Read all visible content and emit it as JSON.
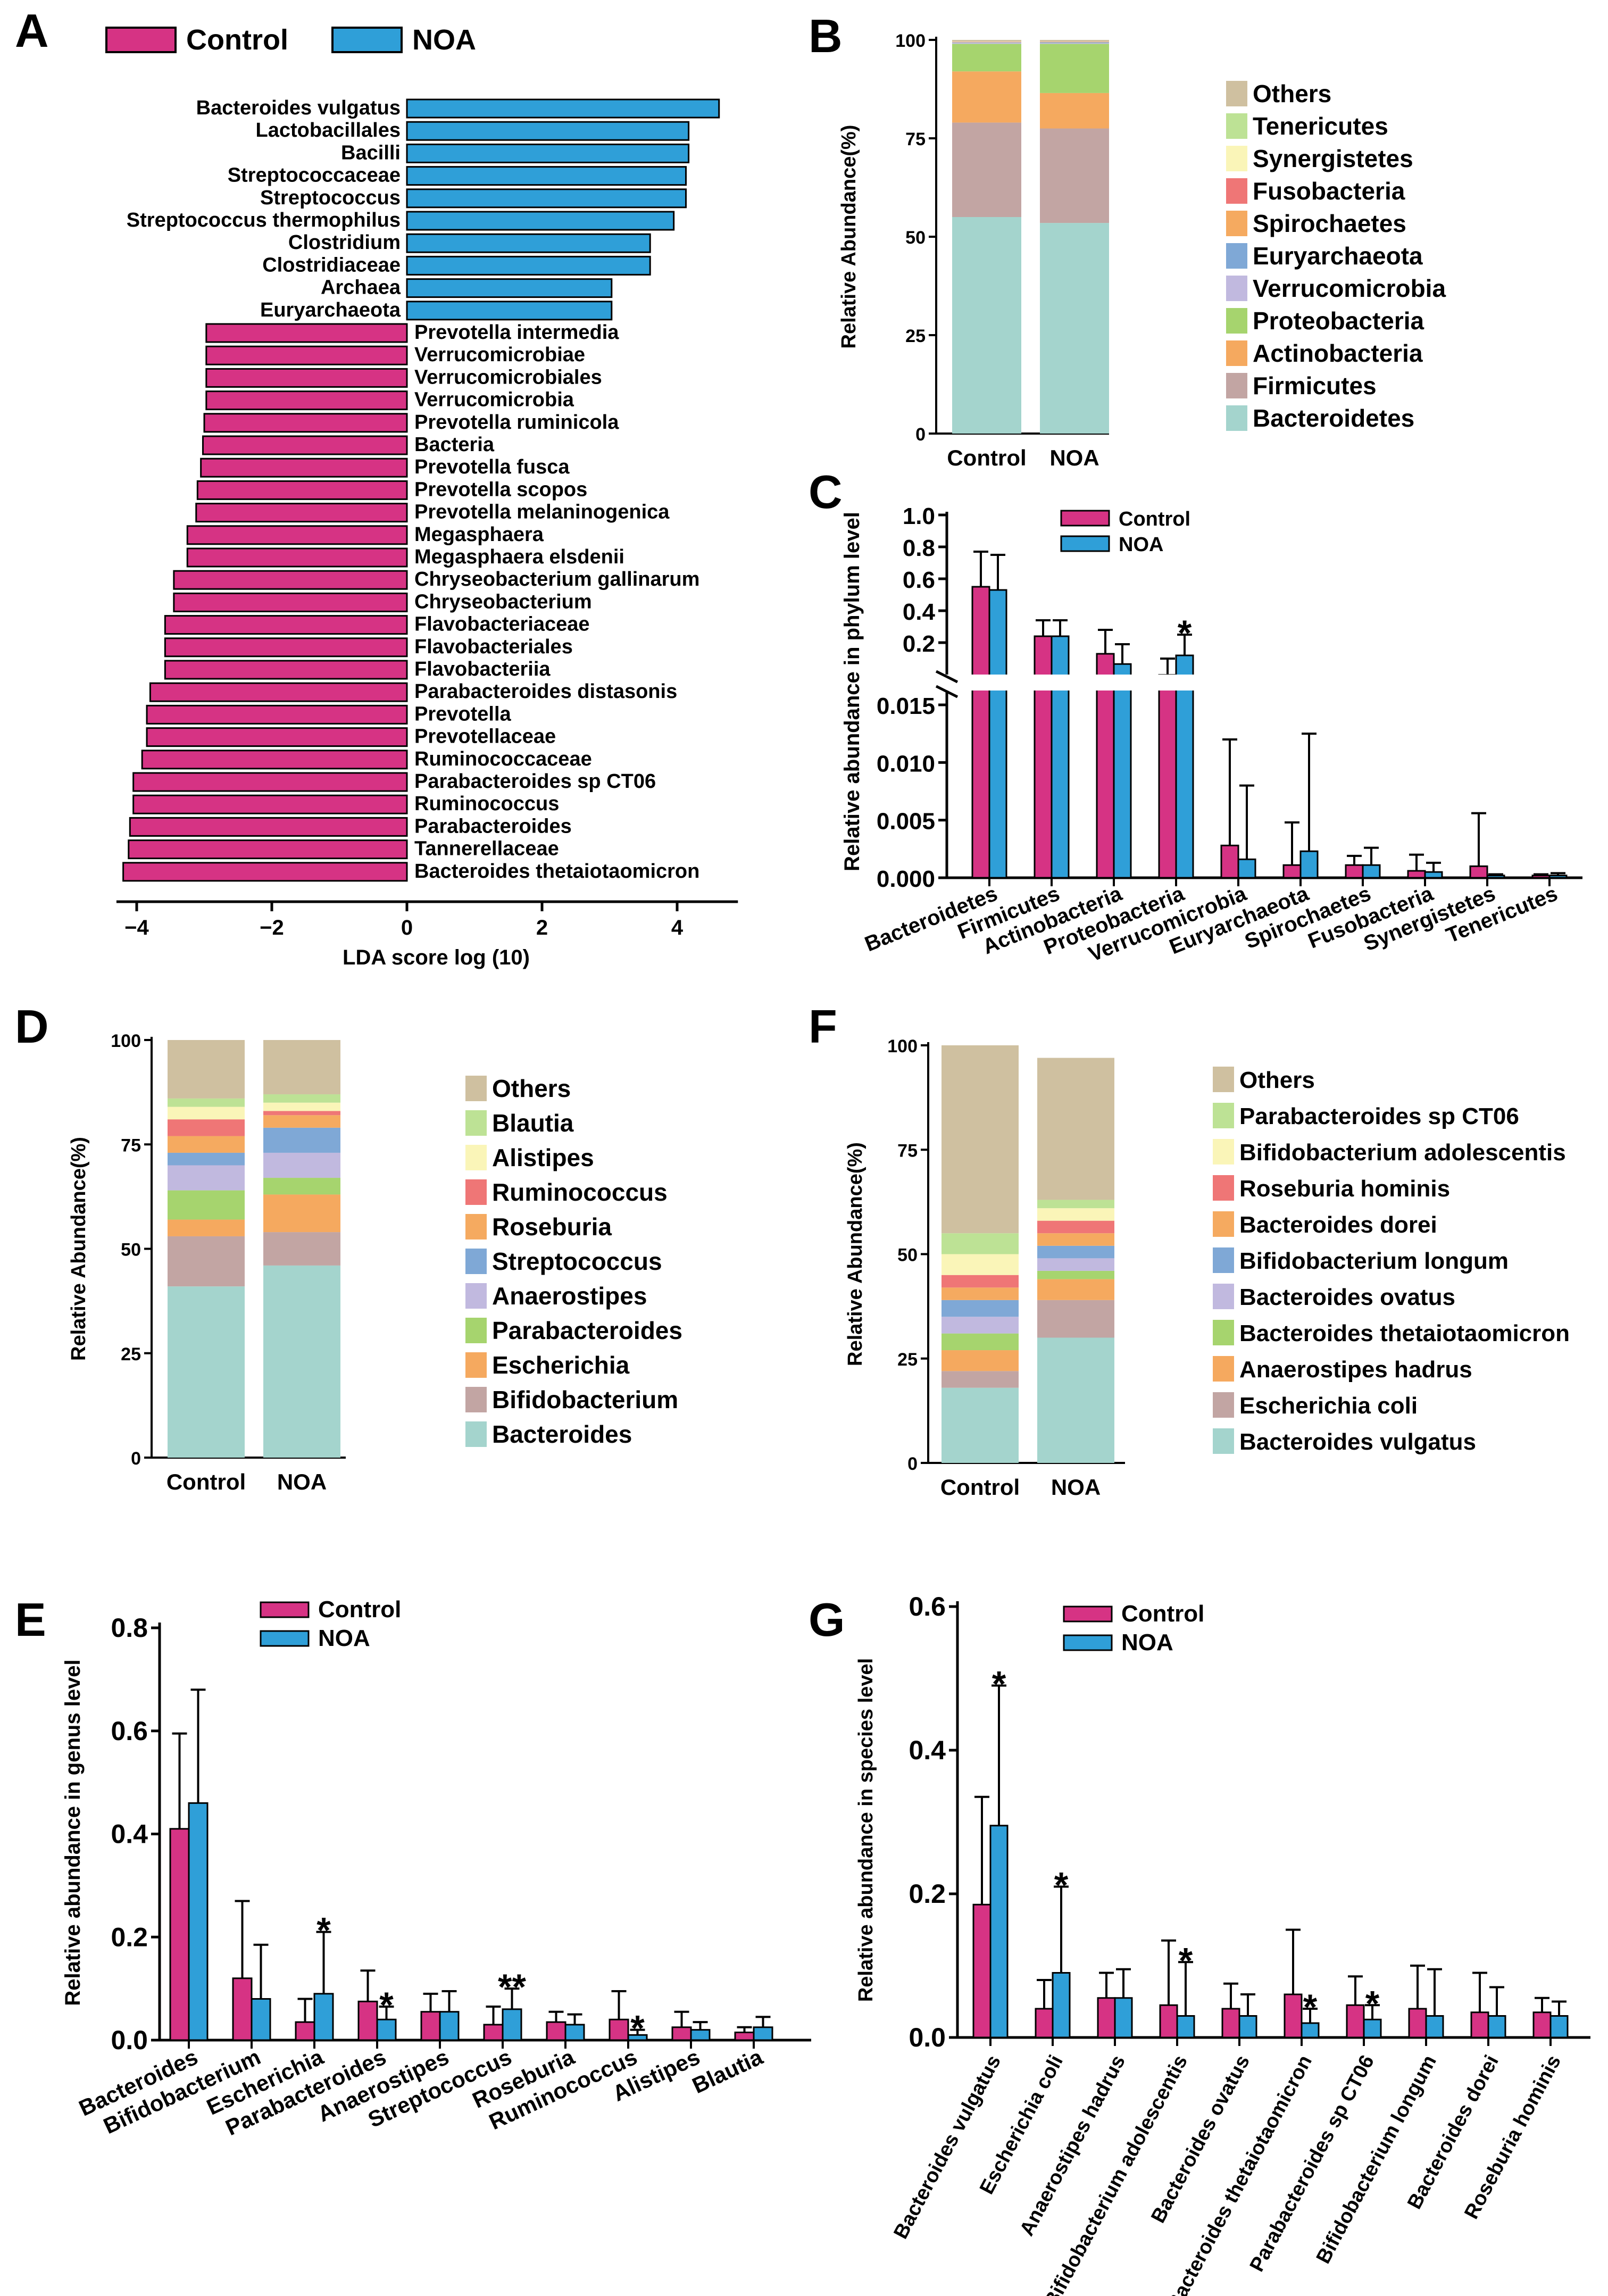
{
  "colors": {
    "control": "#d63384",
    "noa": "#2f9fd8",
    "edge": "#000000",
    "stack": [
      "#a4d4cd",
      "#c2a5a3",
      "#f5a95f",
      "#a6d46e",
      "#c1b9df",
      "#7fa8d6",
      "#f5aa60",
      "#ef7676",
      "#faf5b8",
      "#bde295",
      "#cfc0a0"
    ]
  },
  "legend": {
    "control": "Control",
    "noa": "NOA"
  },
  "panels": {
    "A": "A",
    "B": "B",
    "C": "C",
    "D": "D",
    "E": "E",
    "F": "F",
    "G": "G"
  },
  "chart_data": [
    {
      "id": "A",
      "type": "bar",
      "orientation": "horizontal",
      "title": "",
      "xlabel": "LDA score log (10)",
      "xlim": [
        -4.3,
        4.9
      ],
      "xticks": [
        -4,
        -2,
        0,
        2,
        4
      ],
      "series": [
        {
          "name": "NOA",
          "categories": [
            "Bacteroides vulgatus",
            "Lactobacillales",
            "Bacilli",
            "Streptococcaceae",
            "Streptococcus",
            "Streptococcus thermophilus",
            "Clostridium",
            "Clostridiaceae",
            "Archaea",
            "Euryarchaeota"
          ],
          "values": [
            4.62,
            4.17,
            4.17,
            4.13,
            4.13,
            3.95,
            3.6,
            3.6,
            3.03,
            3.03
          ]
        },
        {
          "name": "Control",
          "categories": [
            "Prevotella intermedia",
            "Verrucomicrobiae",
            "Verrucomicrobiales",
            "Verrucomicrobia",
            "Prevotella ruminicola",
            "Bacteria",
            "Prevotella fusca",
            "Prevotella scopos",
            "Prevotella melaninogenica",
            "Megasphaera",
            "Megasphaera elsdenii",
            "Chryseobacterium gallinarum",
            "Chryseobacterium",
            "Flavobacteriaceae",
            "Flavobacteriales",
            "Flavobacteriia",
            "Parabacteroides distasonis",
            "Prevotella",
            "Prevotellaceae",
            "Ruminococcaceae",
            "Parabacteroides sp CT06",
            "Ruminococcus",
            "Parabacteroides",
            "Tannerellaceae",
            "Bacteroides thetaiotaomicron"
          ],
          "values": [
            -2.97,
            -2.97,
            -2.97,
            -2.97,
            -3.0,
            -3.02,
            -3.05,
            -3.1,
            -3.12,
            -3.25,
            -3.25,
            -3.45,
            -3.45,
            -3.58,
            -3.58,
            -3.58,
            -3.8,
            -3.85,
            -3.85,
            -3.92,
            -4.05,
            -4.05,
            -4.1,
            -4.12,
            -4.2
          ]
        }
      ]
    },
    {
      "id": "B",
      "type": "bar",
      "stacked": true,
      "ylabel": "Relative Abundance(%)",
      "ylim": [
        0,
        100
      ],
      "yticks": [
        0,
        25,
        50,
        75,
        100
      ],
      "categories": [
        "Control",
        "NOA"
      ],
      "series": [
        {
          "name": "Bacteroidetes",
          "values": [
            55.0,
            53.5
          ]
        },
        {
          "name": "Firmicutes",
          "values": [
            24.0,
            24.0
          ]
        },
        {
          "name": "Actinobacteria",
          "values": [
            13.0,
            9.0
          ]
        },
        {
          "name": "Proteobacteria",
          "values": [
            7.0,
            12.5
          ]
        },
        {
          "name": "Verrucomicrobia",
          "values": [
            0.3,
            0.2
          ]
        },
        {
          "name": "Euryarchaeota",
          "values": [
            0.1,
            0.2
          ]
        },
        {
          "name": "Spirochaetes",
          "values": [
            0.1,
            0.1
          ]
        },
        {
          "name": "Fusobacteria",
          "values": [
            0.05,
            0.05
          ]
        },
        {
          "name": "Synergistetes",
          "values": [
            0.05,
            0.02
          ]
        },
        {
          "name": "Tenericutes",
          "values": [
            0.02,
            0.02
          ]
        },
        {
          "name": "Others",
          "values": [
            0.38,
            0.41
          ]
        }
      ]
    },
    {
      "id": "C",
      "type": "bar",
      "ylabel": "Relative abundance in phylum level",
      "yaxis_break": true,
      "upper_ylim": [
        0.1,
        1.0
      ],
      "upper_yticks": [
        "1.0",
        "0.8",
        "0.6",
        "0.4",
        "0.2"
      ],
      "lower_ylim": [
        0,
        0.015
      ],
      "lower_yticks": [
        "0.015",
        "0.010",
        "0.005",
        "0.000"
      ],
      "categories": [
        "Bacteroidetes",
        "Firmicutes",
        "Actinobacteria",
        "Proteobacteria",
        "Verrucomicrobia",
        "Euryarchaeota",
        "Spirochaetes",
        "Fusobacteria",
        "Synergistetes",
        "Tenericutes"
      ],
      "series": [
        {
          "name": "Control",
          "values": [
            0.55,
            0.24,
            0.13,
            0.07,
            0.0028,
            0.0011,
            0.0011,
            0.0006,
            0.001,
            0.0002
          ],
          "errors": [
            0.22,
            0.1,
            0.15,
            0.03,
            0.0092,
            0.0037,
            0.0008,
            0.0014,
            0.0046,
            0.0001
          ]
        },
        {
          "name": "NOA",
          "values": [
            0.53,
            0.24,
            0.09,
            0.12,
            0.0016,
            0.0023,
            0.0011,
            0.0005,
            0.0002,
            0.0002
          ],
          "errors": [
            0.22,
            0.1,
            0.1,
            0.13,
            0.0064,
            0.0102,
            0.0015,
            0.0008,
            0.0001,
            0.0002
          ]
        }
      ],
      "annotations": [
        {
          "category": "Proteobacteria",
          "series": "NOA",
          "text": "*"
        }
      ]
    },
    {
      "id": "D",
      "type": "bar",
      "stacked": true,
      "ylabel": "Relative Abundance(%)",
      "ylim": [
        0,
        100
      ],
      "yticks": [
        0,
        25,
        50,
        75,
        100
      ],
      "categories": [
        "Control",
        "NOA"
      ],
      "series": [
        {
          "name": "Bacteroides",
          "values": [
            41,
            46
          ]
        },
        {
          "name": "Bifidobacterium",
          "values": [
            12,
            8
          ]
        },
        {
          "name": "Escherichia",
          "values": [
            4,
            9
          ]
        },
        {
          "name": "Parabacteroides",
          "values": [
            7,
            4
          ]
        },
        {
          "name": "Anaerostipes",
          "values": [
            6,
            6
          ]
        },
        {
          "name": "Streptococcus",
          "values": [
            3,
            6
          ]
        },
        {
          "name": "Roseburia",
          "values": [
            4,
            3
          ]
        },
        {
          "name": "Ruminococcus",
          "values": [
            4,
            1
          ]
        },
        {
          "name": "Alistipes",
          "values": [
            3,
            2
          ]
        },
        {
          "name": "Blautia",
          "values": [
            2,
            2
          ]
        },
        {
          "name": "Others",
          "values": [
            14,
            13
          ]
        }
      ]
    },
    {
      "id": "E",
      "type": "bar",
      "ylabel": "Relative abundance in genus level",
      "ylim": [
        0,
        0.8
      ],
      "yticks": [
        "0.0",
        "0.2",
        "0.4",
        "0.6",
        "0.8"
      ],
      "categories": [
        "Bacteroides",
        "Bifidobacterium",
        "Escherichia",
        "Parabacteroides",
        "Anaerostipes",
        "Streptococcus",
        "Roseburia",
        "Ruminococcus",
        "Alistipes",
        "Blautia"
      ],
      "series": [
        {
          "name": "Control",
          "values": [
            0.41,
            0.12,
            0.035,
            0.075,
            0.055,
            0.03,
            0.035,
            0.04,
            0.025,
            0.015
          ],
          "errors": [
            0.185,
            0.15,
            0.045,
            0.06,
            0.035,
            0.035,
            0.02,
            0.055,
            0.03,
            0.01
          ]
        },
        {
          "name": "NOA",
          "values": [
            0.46,
            0.08,
            0.09,
            0.04,
            0.055,
            0.06,
            0.03,
            0.01,
            0.02,
            0.025
          ],
          "errors": [
            0.22,
            0.105,
            0.12,
            0.025,
            0.04,
            0.04,
            0.02,
            0.01,
            0.015,
            0.02
          ]
        }
      ],
      "annotations": [
        {
          "category": "Escherichia",
          "series": "NOA",
          "text": "*"
        },
        {
          "category": "Parabacteroides",
          "series": "NOA",
          "text": "*"
        },
        {
          "category": "Streptococcus",
          "series": "NOA",
          "text": "**"
        },
        {
          "category": "Ruminococcus",
          "series": "NOA",
          "text": "*"
        }
      ]
    },
    {
      "id": "F",
      "type": "bar",
      "stacked": true,
      "ylabel": "Relative Abundance(%)",
      "ylim": [
        0,
        100
      ],
      "yticks": [
        0,
        25,
        50,
        75,
        100
      ],
      "categories": [
        "Control",
        "NOA"
      ],
      "series": [
        {
          "name": "Bacteroides vulgatus",
          "values": [
            18,
            30
          ]
        },
        {
          "name": "Escherichia coli",
          "values": [
            4,
            9
          ]
        },
        {
          "name": "Anaerostipes hadrus",
          "values": [
            5,
            5
          ]
        },
        {
          "name": "Bacteroides thetaiotaomicron",
          "values": [
            4,
            2
          ]
        },
        {
          "name": "Bacteroides ovatus",
          "values": [
            4,
            3
          ]
        },
        {
          "name": "Bifidobacterium longum",
          "values": [
            4,
            3
          ]
        },
        {
          "name": "Bacteroides dorei",
          "values": [
            3,
            3
          ]
        },
        {
          "name": "Roseburia hominis",
          "values": [
            3,
            3
          ]
        },
        {
          "name": "Bifidobacterium adolescentis",
          "values": [
            5,
            3
          ]
        },
        {
          "name": "Parabacteroides sp CT06",
          "values": [
            5,
            2
          ]
        },
        {
          "name": "Others",
          "values": [
            45,
            34
          ]
        }
      ]
    },
    {
      "id": "G",
      "type": "bar",
      "ylabel": "Relative abundance in species level",
      "ylim": [
        0,
        0.6
      ],
      "yticks": [
        "0.0",
        "0.2",
        "0.4",
        "0.6"
      ],
      "categories": [
        "Bacteroides vulgatus",
        "Escherichia coli",
        "Anaerostipes hadrus",
        "Bifidobacterium adolescentis",
        "Bacteroides ovatus",
        "Bacteroides thetaiotaomicron",
        "Parabacteroides sp CT06",
        "Bifidobacterium longum",
        "Bacteroides dorei",
        "Roseburia hominis"
      ],
      "series": [
        {
          "name": "Control",
          "values": [
            0.185,
            0.04,
            0.055,
            0.045,
            0.04,
            0.06,
            0.045,
            0.04,
            0.035,
            0.035
          ],
          "errors": [
            0.15,
            0.04,
            0.035,
            0.09,
            0.035,
            0.09,
            0.04,
            0.06,
            0.055,
            0.02
          ]
        },
        {
          "name": "NOA",
          "values": [
            0.295,
            0.09,
            0.055,
            0.03,
            0.03,
            0.02,
            0.025,
            0.03,
            0.03,
            0.03
          ],
          "errors": [
            0.195,
            0.12,
            0.04,
            0.075,
            0.03,
            0.02,
            0.02,
            0.065,
            0.04,
            0.02
          ]
        }
      ],
      "annotations": [
        {
          "category": "Bacteroides vulgatus",
          "series": "NOA",
          "text": "*"
        },
        {
          "category": "Escherichia coli",
          "series": "NOA",
          "text": "*"
        },
        {
          "category": "Bifidobacterium adolescentis",
          "series": "NOA",
          "text": "*"
        },
        {
          "category": "Bacteroides thetaiotaomicron",
          "series": "NOA",
          "text": "*"
        },
        {
          "category": "Parabacteroides sp CT06",
          "series": "NOA",
          "text": "*"
        }
      ]
    }
  ]
}
